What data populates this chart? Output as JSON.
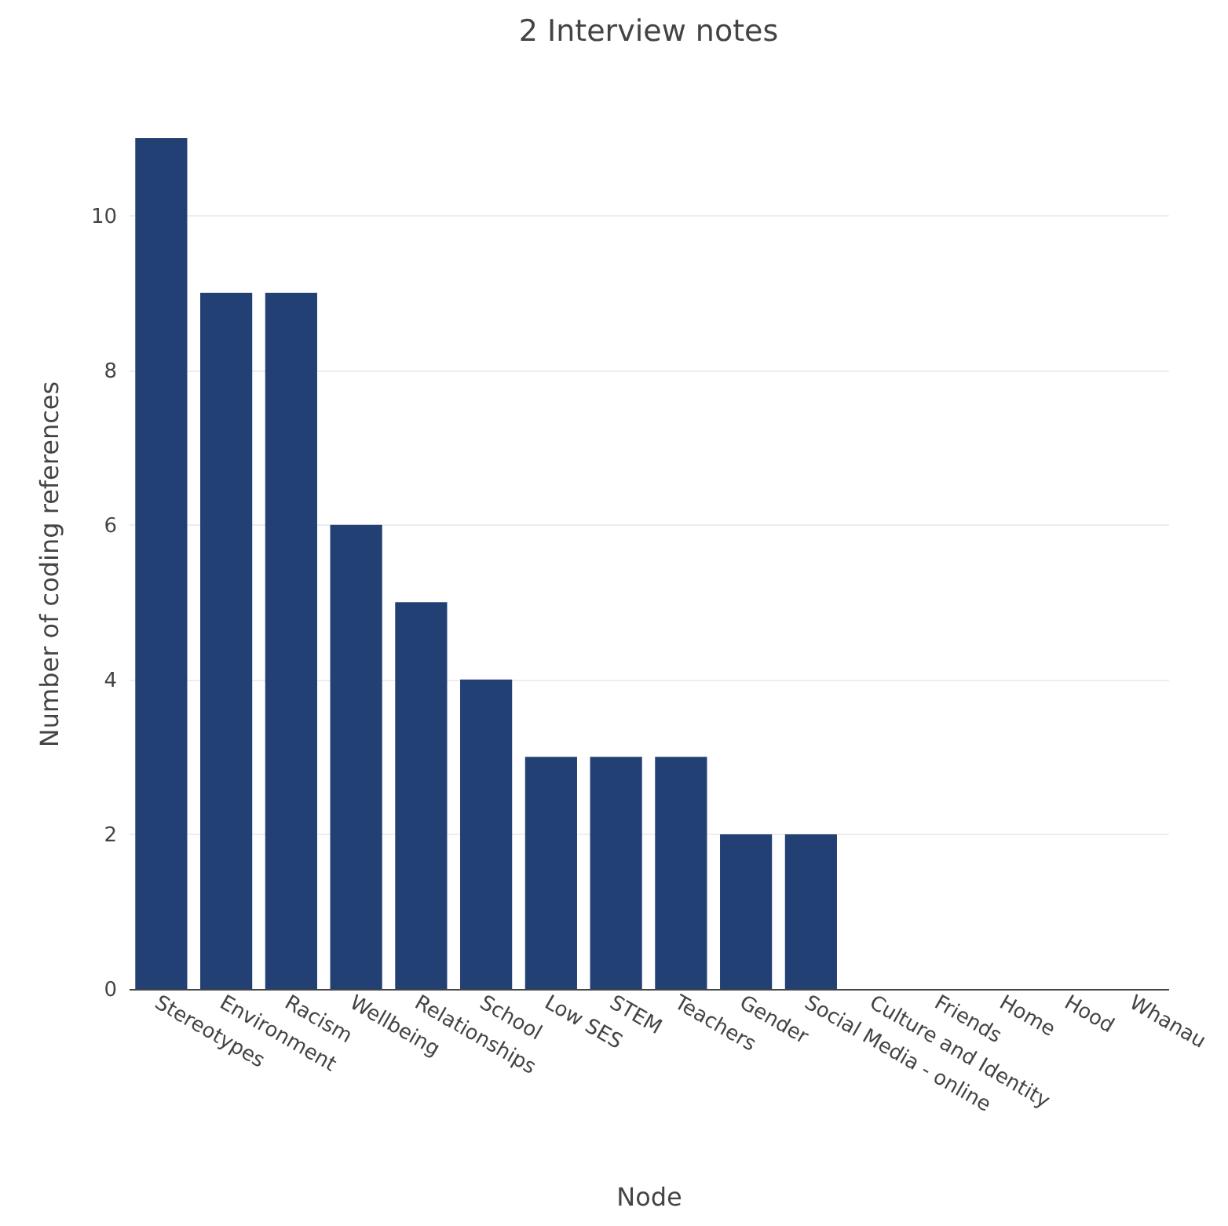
{
  "chart_data": {
    "type": "bar",
    "title": "2 Interview notes",
    "xlabel": "Node",
    "ylabel": "Number of coding references",
    "categories": [
      "Stereotypes",
      "Environment",
      "Racism",
      "Wellbeing",
      "Relationships",
      "School",
      "Low SES",
      "STEM",
      "Teachers",
      "Gender",
      "Social Media - online",
      "Culture and Identity",
      "Friends",
      "Home",
      "Hood",
      "Whanau"
    ],
    "values": [
      11,
      9,
      9,
      6,
      5,
      4,
      3,
      3,
      3,
      2,
      2,
      0,
      0,
      0,
      0,
      0
    ],
    "color": "#234075",
    "ylim": [
      0,
      11
    ],
    "yticks": [
      0,
      2,
      4,
      6,
      8,
      10
    ],
    "grid": "y"
  }
}
